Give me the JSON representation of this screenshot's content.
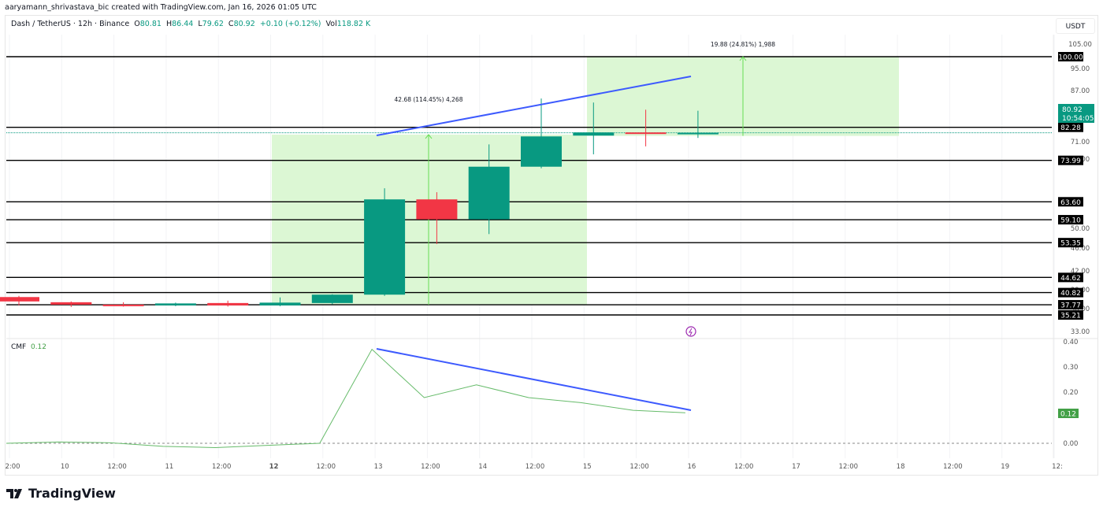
{
  "credit": "aaryamann_shrivastava_bic created with TradingView.com, Jan 16, 2026 01:05 UTC",
  "legend": {
    "symbol": "Dash / TetherUS · 12h · Binance",
    "open_label": "O",
    "open": "80.81",
    "high_label": "H",
    "high": "86.44",
    "low_label": "L",
    "low": "79.62",
    "close_label": "C",
    "close": "80.92",
    "change": "+0.10 (+0.12%)",
    "vol_label": "Vol",
    "vol": "118.82 K"
  },
  "currency": "USDT",
  "current_price": {
    "value": "80.92",
    "countdown": "10:54:05"
  },
  "cmf_legend": {
    "name": "CMF",
    "value": "0.12"
  },
  "brand": "TradingView",
  "colors": {
    "up": "#089981",
    "down": "#f23645",
    "trend": "#3d5afe",
    "cmf": "#66bb6a",
    "zone": "#dcf7d4"
  },
  "chart_data": [
    {
      "type": "candlestick",
      "title": "Dash / TetherUS · 12h · Binance",
      "ylabel": "USDT",
      "ylim": [
        33,
        105
      ],
      "yticks": [
        "105.00",
        "95.00",
        "87.00",
        "71.00",
        "66.00",
        "50.00",
        "46.00",
        "42.00",
        "39.00",
        "36.00",
        "33.00"
      ],
      "x_ticks": [
        "2:00",
        "10",
        "12:00",
        "11",
        "12:00",
        "12",
        "12:00",
        "13",
        "12:00",
        "14",
        "12:00",
        "15",
        "12:00",
        "16",
        "12:00",
        "17",
        "12:00",
        "18",
        "12:00",
        "19",
        "12:"
      ],
      "candles": [
        {
          "t": "9 12:00",
          "o": 39.7,
          "h": 40.0,
          "l": 37.6,
          "c": 38.6
        },
        {
          "t": "10 00:00",
          "o": 38.4,
          "h": 38.6,
          "l": 37.2,
          "c": 37.8
        },
        {
          "t": "10 12:00",
          "o": 37.8,
          "h": 38.4,
          "l": 37.3,
          "c": 37.6
        },
        {
          "t": "11 00:00",
          "o": 37.6,
          "h": 38.3,
          "l": 37.4,
          "c": 38.1
        },
        {
          "t": "11 12:00",
          "o": 38.2,
          "h": 38.8,
          "l": 37.3,
          "c": 37.6
        },
        {
          "t": "12 00:00",
          "o": 37.6,
          "h": 39.6,
          "l": 37.4,
          "c": 38.3
        },
        {
          "t": "12 12:00",
          "o": 38.2,
          "h": 40.4,
          "l": 37.9,
          "c": 40.3
        },
        {
          "t": "13 00:00",
          "o": 40.3,
          "h": 67.0,
          "l": 40.0,
          "c": 64.2
        },
        {
          "t": "13 12:00",
          "o": 64.2,
          "h": 66.0,
          "l": 53.0,
          "c": 59.2
        },
        {
          "t": "14 00:00",
          "o": 59.2,
          "h": 78.0,
          "l": 55.5,
          "c": 72.4
        },
        {
          "t": "14 12:00",
          "o": 72.4,
          "h": 89.5,
          "l": 72.0,
          "c": 80.0
        },
        {
          "t": "15 00:00",
          "o": 80.2,
          "h": 88.5,
          "l": 75.5,
          "c": 81.0
        },
        {
          "t": "15 12:00",
          "o": 81.0,
          "h": 86.7,
          "l": 77.5,
          "c": 80.81
        },
        {
          "t": "16 00:00",
          "o": 80.81,
          "h": 86.44,
          "l": 79.62,
          "c": 80.92
        }
      ],
      "horizontal_levels": [
        "100.00",
        "82.28",
        "73.99",
        "63.60",
        "59.10",
        "53.35",
        "44.62",
        "40.82",
        "37.77",
        "35.21"
      ],
      "annotations": [
        {
          "type": "measure",
          "text": "42.68 (114.45%) 4,268",
          "from": 37.77,
          "to": 80.45
        },
        {
          "type": "measure",
          "text": "19.88 (24.81%) 1,988",
          "from": 80.12,
          "to": 100.0
        },
        {
          "type": "trendline",
          "from": {
            "t": "13 00:00",
            "y": 74.5
          },
          "to": {
            "t": "16 00:00",
            "y": 91.5
          }
        }
      ]
    },
    {
      "type": "line",
      "title": "CMF",
      "ylim": [
        -0.03,
        0.4
      ],
      "yticks": [
        "0.40",
        "0.30",
        "0.20",
        "0.12",
        "0.00"
      ],
      "x": [
        "9 12:00",
        "10 00:00",
        "10 12:00",
        "11 00:00",
        "11 12:00",
        "12 00:00",
        "12 12:00",
        "13 00:00",
        "13 12:00",
        "14 00:00",
        "14 12:00",
        "15 00:00",
        "15 12:00",
        "16 00:00"
      ],
      "values": [
        0.0,
        0.005,
        0.002,
        -0.012,
        -0.017,
        -0.008,
        0.0,
        0.37,
        0.18,
        0.23,
        0.18,
        0.16,
        0.13,
        0.12
      ],
      "current": "0.12",
      "trendline": {
        "from": {
          "t": "13 00:00",
          "y": 0.38
        },
        "to": {
          "t": "16 00:00",
          "y": 0.13
        }
      }
    }
  ]
}
